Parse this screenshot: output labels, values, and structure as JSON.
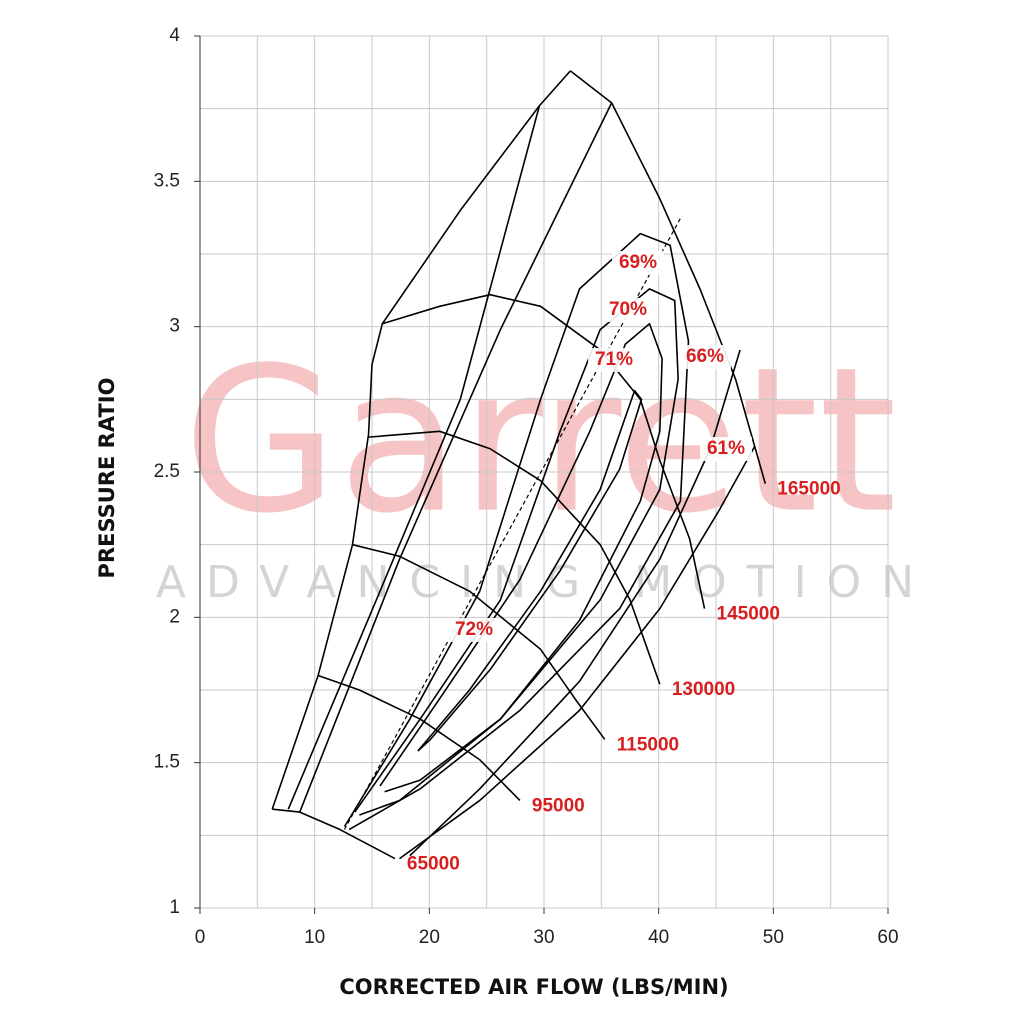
{
  "chart_data": {
    "type": "line",
    "watermark": "Garrett",
    "watermark_tagline": "ADVANCING MOTION",
    "x_label": "CORRECTED AIR FLOW (LBS/MIN)",
    "y_label": "PRESSURE RATIO",
    "xlim": [
      0,
      60
    ],
    "ylim": [
      1,
      4
    ],
    "xticks": [
      0,
      10,
      20,
      30,
      40,
      50,
      60
    ],
    "yticks": [
      1,
      1.5,
      2,
      2.5,
      3,
      3.5,
      4
    ],
    "xgrid": [
      0,
      5,
      10,
      15,
      20,
      25,
      30,
      35,
      40,
      45,
      50,
      55,
      60
    ],
    "ygrid": [
      1,
      1.25,
      1.5,
      1.75,
      2,
      2.25,
      2.5,
      2.75,
      3,
      3.25,
      3.5,
      3.75,
      4
    ],
    "line_color": "#000000",
    "label_color": "#d81e1e",
    "surge_line": {
      "x": [
        6.3,
        10.3,
        13.3,
        14.1,
        14.7,
        15.0,
        15.9,
        22.7,
        29.6,
        32.3
      ],
      "values": [
        1.34,
        1.8,
        2.25,
        2.47,
        2.63,
        2.87,
        3.01,
        3.4,
        3.76,
        3.88
      ]
    },
    "center_line": {
      "dashed": true,
      "x": [
        12.6,
        42.0
      ],
      "values": [
        1.27,
        3.38
      ]
    },
    "speed_lines": [
      {
        "name": "65000",
        "x": [
          6.3,
          8.7,
          12.2,
          17.0
        ],
        "values": [
          1.34,
          1.33,
          1.27,
          1.17
        ]
      },
      {
        "name": "95000",
        "x": [
          10.3,
          13.9,
          19.2,
          24.4,
          27.9
        ],
        "values": [
          1.8,
          1.75,
          1.65,
          1.51,
          1.37
        ]
      },
      {
        "name": "115000",
        "x": [
          13.3,
          17.4,
          23.5,
          29.7,
          32.7,
          35.3
        ],
        "values": [
          2.25,
          2.21,
          2.09,
          1.89,
          1.72,
          1.58
        ]
      },
      {
        "name": "130000",
        "x": [
          14.7,
          20.9,
          25.3,
          29.7,
          34.9,
          37.5,
          40.1
        ],
        "values": [
          2.62,
          2.64,
          2.58,
          2.47,
          2.25,
          2.06,
          1.77
        ]
      },
      {
        "name": "145000",
        "x": [
          15.9,
          20.9,
          25.3,
          29.7,
          34.9,
          38.4,
          40.1,
          42.7,
          44.0
        ],
        "values": [
          3.01,
          3.07,
          3.11,
          3.07,
          2.92,
          2.75,
          2.54,
          2.27,
          2.03
        ]
      },
      {
        "name": "165000",
        "x": [
          32.3,
          35.9,
          40.1,
          43.6,
          46.7,
          49.3
        ],
        "values": [
          3.88,
          3.77,
          3.44,
          3.13,
          2.82,
          2.46
        ]
      }
    ],
    "efficiency_islands": [
      {
        "name": "72%",
        "x": [
          19.0,
          23.5,
          29.7,
          34.9,
          37.9,
          38.5,
          36.6,
          31.4,
          25.3,
          20.1,
          19.0
        ],
        "values": [
          1.54,
          1.75,
          2.09,
          2.44,
          2.78,
          2.75,
          2.51,
          2.16,
          1.82,
          1.58,
          1.54
        ]
      },
      {
        "name": "71%",
        "x": [
          15.7,
          20.9,
          27.9,
          34.0,
          37.1,
          39.2,
          40.3,
          40.1,
          38.4,
          33.1,
          26.2,
          19.2,
          16.1
        ],
        "values": [
          1.42,
          1.72,
          2.13,
          2.64,
          2.94,
          3.01,
          2.89,
          2.64,
          2.4,
          1.99,
          1.65,
          1.44,
          1.4
        ]
      },
      {
        "name": "70%",
        "x": [
          13.5,
          19.2,
          26.2,
          31.4,
          34.9,
          39.2,
          41.4,
          41.7,
          40.1,
          34.9,
          26.2,
          17.4,
          13.9
        ],
        "values": [
          1.33,
          1.65,
          2.06,
          2.64,
          2.99,
          3.13,
          3.09,
          2.82,
          2.44,
          2.06,
          1.65,
          1.37,
          1.32
        ]
      },
      {
        "name": "69%",
        "x": [
          12.6,
          18.3,
          24.4,
          29.7,
          33.1,
          38.4,
          41.0,
          42.6,
          41.9,
          36.6,
          27.9,
          19.2,
          13.0
        ],
        "values": [
          1.28,
          1.65,
          2.09,
          2.75,
          3.13,
          3.32,
          3.28,
          2.95,
          2.4,
          2.03,
          1.68,
          1.41,
          1.27
        ]
      },
      {
        "name": "66%",
        "x": [
          8.7,
          17.4,
          26.2,
          35.9,
          null,
          47.1,
          44.5,
          40.1,
          33.1,
          24.4,
          18.3
        ],
        "values": [
          1.33,
          2.2,
          2.99,
          3.77,
          null,
          2.92,
          2.58,
          2.2,
          1.78,
          1.41,
          1.18
        ]
      },
      {
        "name": "61%",
        "x": [
          7.7,
          15.7,
          22.7,
          29.6,
          null,
          48.4,
          45.3,
          40.1,
          33.1,
          24.4,
          17.4
        ],
        "values": [
          1.34,
          2.09,
          2.75,
          3.76,
          null,
          2.59,
          2.37,
          2.03,
          1.68,
          1.37,
          1.17
        ]
      }
    ]
  }
}
